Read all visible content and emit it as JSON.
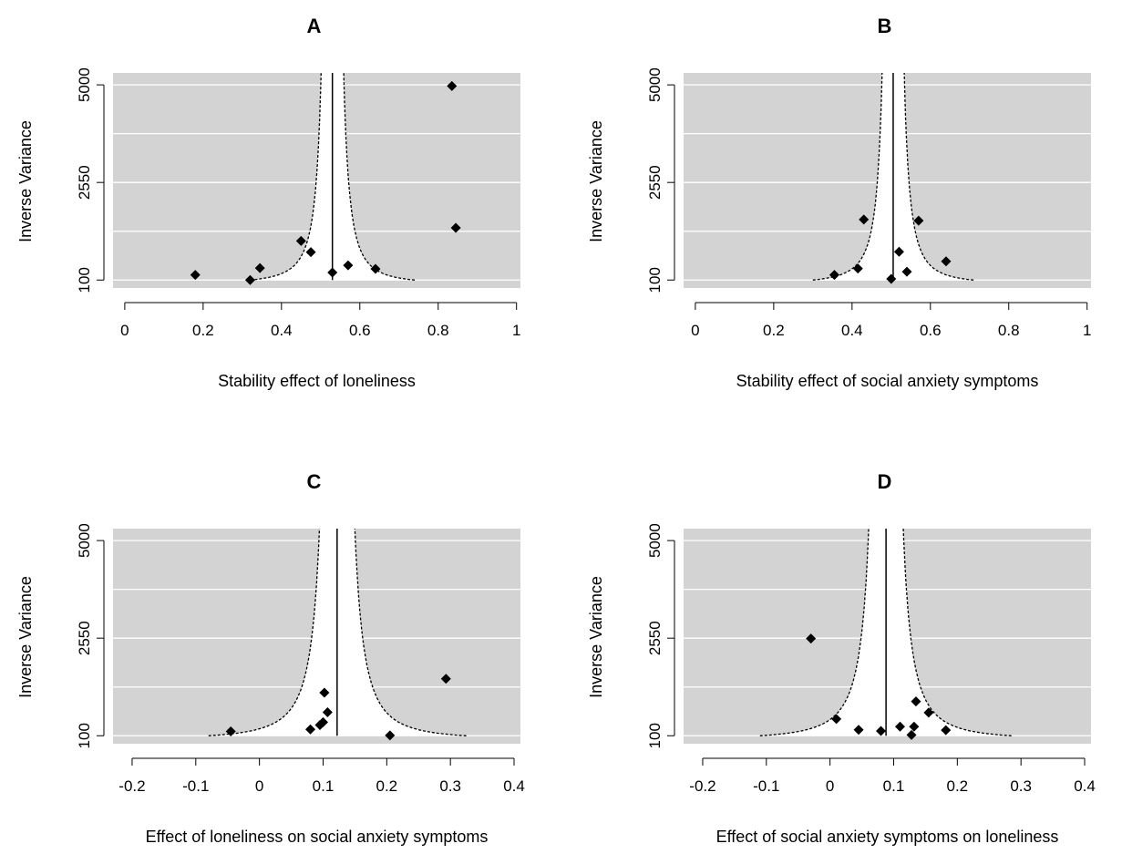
{
  "chart_data": [
    {
      "type": "scatter",
      "title": "A",
      "xlabel": "Stability effect of loneliness",
      "ylabel": "Inverse Variance",
      "xlim": [
        -0.03,
        1.01
      ],
      "ylim": [
        -100,
        5300
      ],
      "xticks": [
        0,
        0.2,
        0.4,
        0.6,
        0.8,
        1
      ],
      "xtick_labels": [
        "0",
        "0.2",
        "0.4",
        "0.6",
        "0.8",
        "1"
      ],
      "yticks": [
        100,
        2550,
        5000
      ],
      "ytick_labels": [
        "100",
        "2550",
        "5000"
      ],
      "grid": true,
      "summary_effect": 0.53,
      "funnel_range": [
        0.32,
        0.74
      ],
      "points": [
        {
          "x": 0.18,
          "y": 230
        },
        {
          "x": 0.32,
          "y": 100
        },
        {
          "x": 0.345,
          "y": 400
        },
        {
          "x": 0.45,
          "y": 1080
        },
        {
          "x": 0.475,
          "y": 800
        },
        {
          "x": 0.53,
          "y": 290
        },
        {
          "x": 0.57,
          "y": 470
        },
        {
          "x": 0.64,
          "y": 380
        },
        {
          "x": 0.835,
          "y": 4970
        },
        {
          "x": 0.845,
          "y": 1410
        }
      ]
    },
    {
      "type": "scatter",
      "title": "B",
      "xlabel": "Stability effect of social anxiety symptoms",
      "ylabel": "Inverse Variance",
      "xlim": [
        -0.03,
        1.01
      ],
      "ylim": [
        -100,
        5300
      ],
      "xticks": [
        0,
        0.2,
        0.4,
        0.6,
        0.8,
        1
      ],
      "xtick_labels": [
        "0",
        "0.2",
        "0.4",
        "0.6",
        "0.8",
        "1"
      ],
      "yticks": [
        100,
        2550,
        5000
      ],
      "ytick_labels": [
        "100",
        "2550",
        "5000"
      ],
      "grid": true,
      "summary_effect": 0.505,
      "funnel_range": [
        0.3,
        0.71
      ],
      "points": [
        {
          "x": 0.355,
          "y": 230
        },
        {
          "x": 0.415,
          "y": 390
        },
        {
          "x": 0.43,
          "y": 1620
        },
        {
          "x": 0.5,
          "y": 130
        },
        {
          "x": 0.52,
          "y": 810
        },
        {
          "x": 0.54,
          "y": 310
        },
        {
          "x": 0.57,
          "y": 1590
        },
        {
          "x": 0.64,
          "y": 570
        }
      ]
    },
    {
      "type": "scatter",
      "title": "C",
      "xlabel": "Effect of loneliness on social anxiety symptoms",
      "ylabel": "Inverse Variance",
      "xlim": [
        -0.23,
        0.41
      ],
      "ylim": [
        -100,
        5300
      ],
      "xticks": [
        -0.2,
        -0.1,
        0,
        0.1,
        0.2,
        0.3,
        0.4
      ],
      "xtick_labels": [
        "-0.2",
        "-0.1",
        "0",
        "0.1",
        "0.2",
        "0.3",
        "0.4"
      ],
      "yticks": [
        100,
        2550,
        5000
      ],
      "ytick_labels": [
        "100",
        "2550",
        "5000"
      ],
      "grid": true,
      "summary_effect": 0.122,
      "funnel_range": [
        -0.08,
        0.325
      ],
      "points": [
        {
          "x": -0.045,
          "y": 210
        },
        {
          "x": 0.08,
          "y": 260
        },
        {
          "x": 0.095,
          "y": 370
        },
        {
          "x": 0.1,
          "y": 440
        },
        {
          "x": 0.102,
          "y": 1180
        },
        {
          "x": 0.107,
          "y": 690
        },
        {
          "x": 0.205,
          "y": 110
        },
        {
          "x": 0.293,
          "y": 1530
        }
      ]
    },
    {
      "type": "scatter",
      "title": "D",
      "xlabel": "Effect of social anxiety symptoms on loneliness",
      "ylabel": "Inverse Variance",
      "xlim": [
        -0.23,
        0.41
      ],
      "ylim": [
        -100,
        5300
      ],
      "xticks": [
        -0.2,
        -0.1,
        0,
        0.1,
        0.2,
        0.3,
        0.4
      ],
      "xtick_labels": [
        "-0.2",
        "-0.1",
        "0",
        "0.1",
        "0.2",
        "0.3",
        "0.4"
      ],
      "yticks": [
        100,
        2550,
        5000
      ],
      "ytick_labels": [
        "100",
        "2550",
        "5000"
      ],
      "grid": true,
      "summary_effect": 0.088,
      "funnel_range": [
        -0.11,
        0.285
      ],
      "points": [
        {
          "x": -0.03,
          "y": 2540
        },
        {
          "x": 0.01,
          "y": 520
        },
        {
          "x": 0.045,
          "y": 250
        },
        {
          "x": 0.08,
          "y": 220
        },
        {
          "x": 0.11,
          "y": 330
        },
        {
          "x": 0.128,
          "y": 120
        },
        {
          "x": 0.132,
          "y": 330
        },
        {
          "x": 0.135,
          "y": 960
        },
        {
          "x": 0.155,
          "y": 680
        },
        {
          "x": 0.182,
          "y": 240
        }
      ]
    }
  ]
}
